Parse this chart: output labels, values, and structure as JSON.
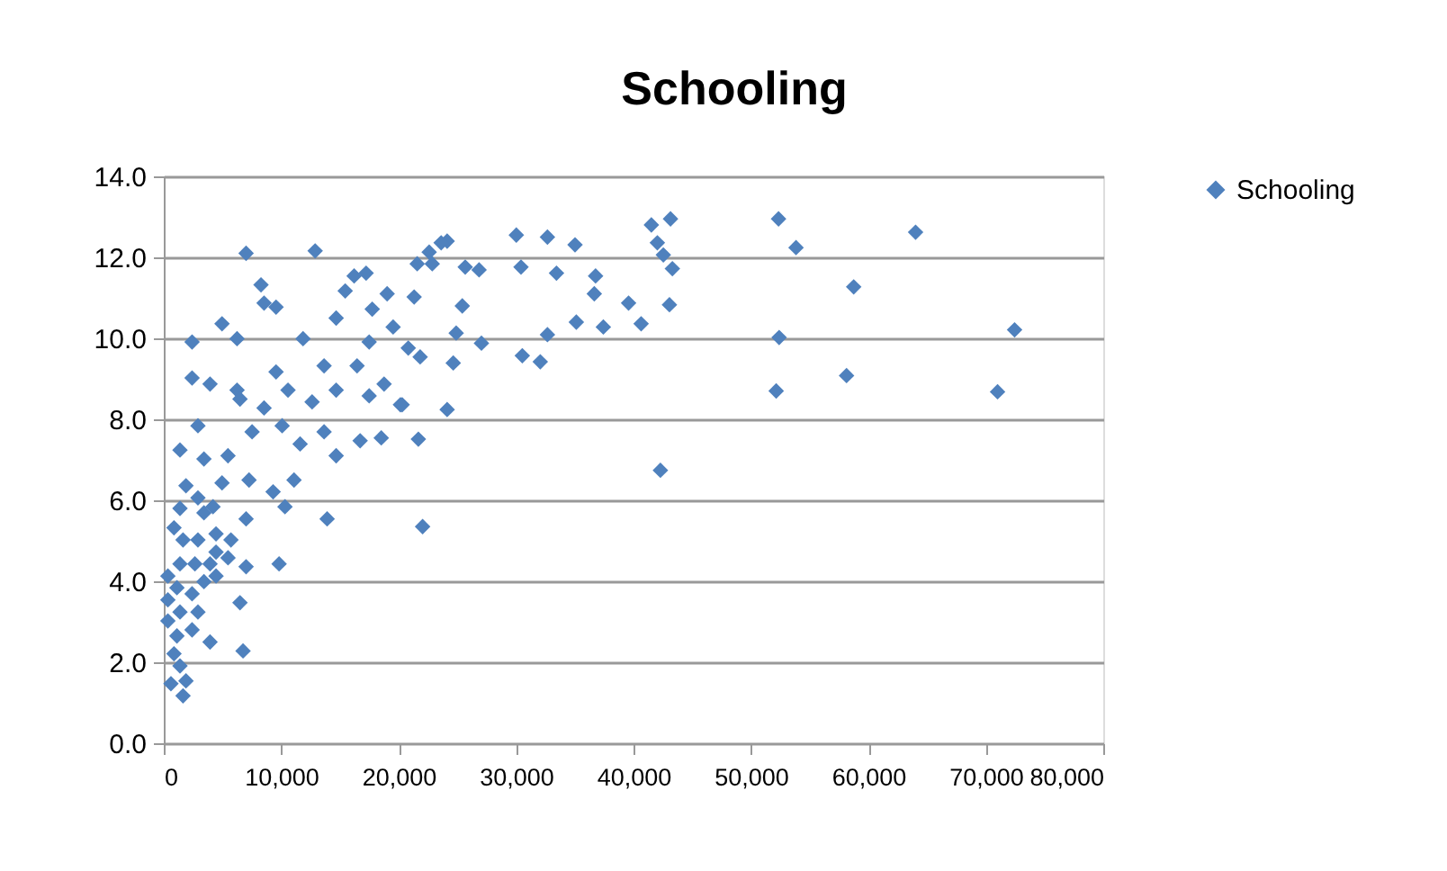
{
  "chart_data": {
    "type": "scatter",
    "title": "Schooling",
    "series": [
      {
        "name": "Schooling",
        "color": "#4f81bd",
        "x": [
          52350,
          53840,
          58750,
          64020,
          72450,
          71000,
          52400,
          52150,
          58140,
          42290,
          22040,
          41520,
          43150,
          42030,
          42540,
          43310,
          43060,
          39580,
          40650,
          37430,
          35130,
          36770,
          36660,
          35020,
          32670,
          30020,
          30420,
          33440,
          32670,
          30530,
          32060,
          27050,
          26850,
          25670,
          24130,
          23620,
          22860,
          21580,
          21320,
          25420,
          24900,
          24650,
          24130,
          21680,
          20150,
          18520,
          18760,
          17490,
          19020,
          17750,
          19530,
          20820,
          21830,
          17230,
          22600,
          7010,
          12890,
          8280,
          8540,
          9560,
          4960,
          2410,
          6240,
          11860,
          16210,
          15450,
          14680,
          17490,
          13650,
          16460,
          2410,
          3940,
          6240,
          6490,
          9560,
          10580,
          8540,
          12630,
          14680,
          20300,
          7520,
          10080,
          11610,
          13650,
          16720,
          14680,
          2910,
          1380,
          3420,
          5470,
          7260,
          9310,
          10320,
          11090,
          13910,
          1890,
          2910,
          4190,
          4960,
          7010,
          870,
          1640,
          2910,
          4450,
          5720,
          1380,
          2650,
          3940,
          5470,
          7010,
          9820,
          350,
          1120,
          2410,
          3420,
          4450,
          350,
          1380,
          2910,
          6490,
          350,
          1120,
          2410,
          3940,
          6750,
          870,
          1380,
          610,
          1640,
          1890,
          3420,
          4450,
          1380
        ],
        "values": [
          12.95,
          12.24,
          11.27,
          12.62,
          10.21,
          8.68,
          10.02,
          8.7,
          9.08,
          6.74,
          5.35,
          12.8,
          12.95,
          12.36,
          12.06,
          11.72,
          10.83,
          10.87,
          10.36,
          10.28,
          10.4,
          11.54,
          11.1,
          12.31,
          12.5,
          12.55,
          11.76,
          11.61,
          10.09,
          9.57,
          9.42,
          9.88,
          11.69,
          11.76,
          12.4,
          12.36,
          11.84,
          11.84,
          11.02,
          10.8,
          10.13,
          9.39,
          8.24,
          7.51,
          8.36,
          7.54,
          8.87,
          8.58,
          11.1,
          10.72,
          10.28,
          9.76,
          9.54,
          11.61,
          12.13,
          12.1,
          12.16,
          11.32,
          10.87,
          10.77,
          10.36,
          9.91,
          9.99,
          9.99,
          11.54,
          11.17,
          10.5,
          9.91,
          9.32,
          9.32,
          9.02,
          8.87,
          8.72,
          8.5,
          9.17,
          8.72,
          8.28,
          8.43,
          8.72,
          8.36,
          7.69,
          7.84,
          7.39,
          7.69,
          7.47,
          7.1,
          7.84,
          7.24,
          7.02,
          7.1,
          6.5,
          6.21,
          5.84,
          6.5,
          5.54,
          6.36,
          6.06,
          5.84,
          6.43,
          5.54,
          5.32,
          5.02,
          5.02,
          5.17,
          5.02,
          4.43,
          4.43,
          4.43,
          4.58,
          4.36,
          4.43,
          4.13,
          3.84,
          3.69,
          3.99,
          4.13,
          3.54,
          3.24,
          3.24,
          3.47,
          3.02,
          2.65,
          2.8,
          2.5,
          2.28,
          2.21,
          1.91,
          1.47,
          1.17,
          1.54,
          5.69,
          4.72,
          5.8
        ]
      }
    ],
    "xlim": [
      0,
      80000
    ],
    "xticks": [
      {
        "value": 0,
        "label": "0"
      },
      {
        "value": 10000,
        "label": "10,000"
      },
      {
        "value": 20000,
        "label": "20,000"
      },
      {
        "value": 30000,
        "label": "30,000"
      },
      {
        "value": 40000,
        "label": "40,000"
      },
      {
        "value": 50000,
        "label": "50,000"
      },
      {
        "value": 60000,
        "label": "60,000"
      },
      {
        "value": 70000,
        "label": "70,000"
      },
      {
        "value": 80000,
        "label": "80,000"
      }
    ],
    "ylim": [
      0,
      14
    ],
    "yticks": [
      {
        "value": 0,
        "label": "0.0"
      },
      {
        "value": 2,
        "label": "2.0"
      },
      {
        "value": 4,
        "label": "4.0"
      },
      {
        "value": 6,
        "label": "6.0"
      },
      {
        "value": 8,
        "label": "8.0"
      },
      {
        "value": 10,
        "label": "10.0"
      },
      {
        "value": 12,
        "label": "12.0"
      },
      {
        "value": 14,
        "label": "14.0"
      }
    ],
    "grid": "y",
    "legend": "right",
    "marker": "diamond"
  }
}
